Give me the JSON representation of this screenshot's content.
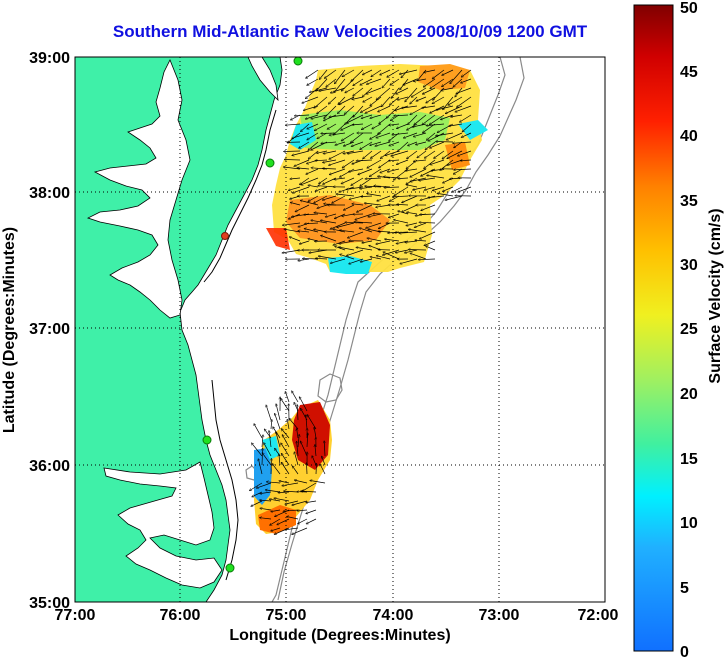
{
  "title": "Southern Mid-Atlantic Raw Velocities 2008/10/09 1200 GMT",
  "x_axis": {
    "label": "Longitude (Degrees:Minutes)",
    "ticks": [
      "77:00",
      "76:00",
      "75:00",
      "74:00",
      "73:00",
      "72:00"
    ],
    "range": [
      -77,
      -72
    ]
  },
  "y_axis": {
    "label": "Latitude (Degrees:Minutes)",
    "ticks": [
      "35:00",
      "36:00",
      "37:00",
      "38:00",
      "39:00"
    ],
    "range": [
      35,
      39
    ]
  },
  "colorbar": {
    "label": "Surface Velocity (cm/s)",
    "ticks": [
      "0",
      "5",
      "10",
      "15",
      "20",
      "25",
      "30",
      "35",
      "40",
      "45",
      "50"
    ],
    "range": [
      0,
      50
    ]
  },
  "colors": {
    "land": "#3ff0a8",
    "coastline": "#000000",
    "bathymetry": "#8a8a8a",
    "title": "#1010e0",
    "grid": "#000000"
  },
  "map": {
    "grid": "dotted",
    "station_markers": "green circles",
    "velocity_field": "colored patches with black vector arrows",
    "regions": [
      {
        "name": "north",
        "lat_range": [
          37.5,
          39.0
        ],
        "lon_range": [
          -75.1,
          -73.1
        ]
      },
      {
        "name": "south",
        "lat_range": [
          35.5,
          36.75
        ],
        "lon_range": [
          -75.3,
          -74.6
        ]
      }
    ]
  }
}
